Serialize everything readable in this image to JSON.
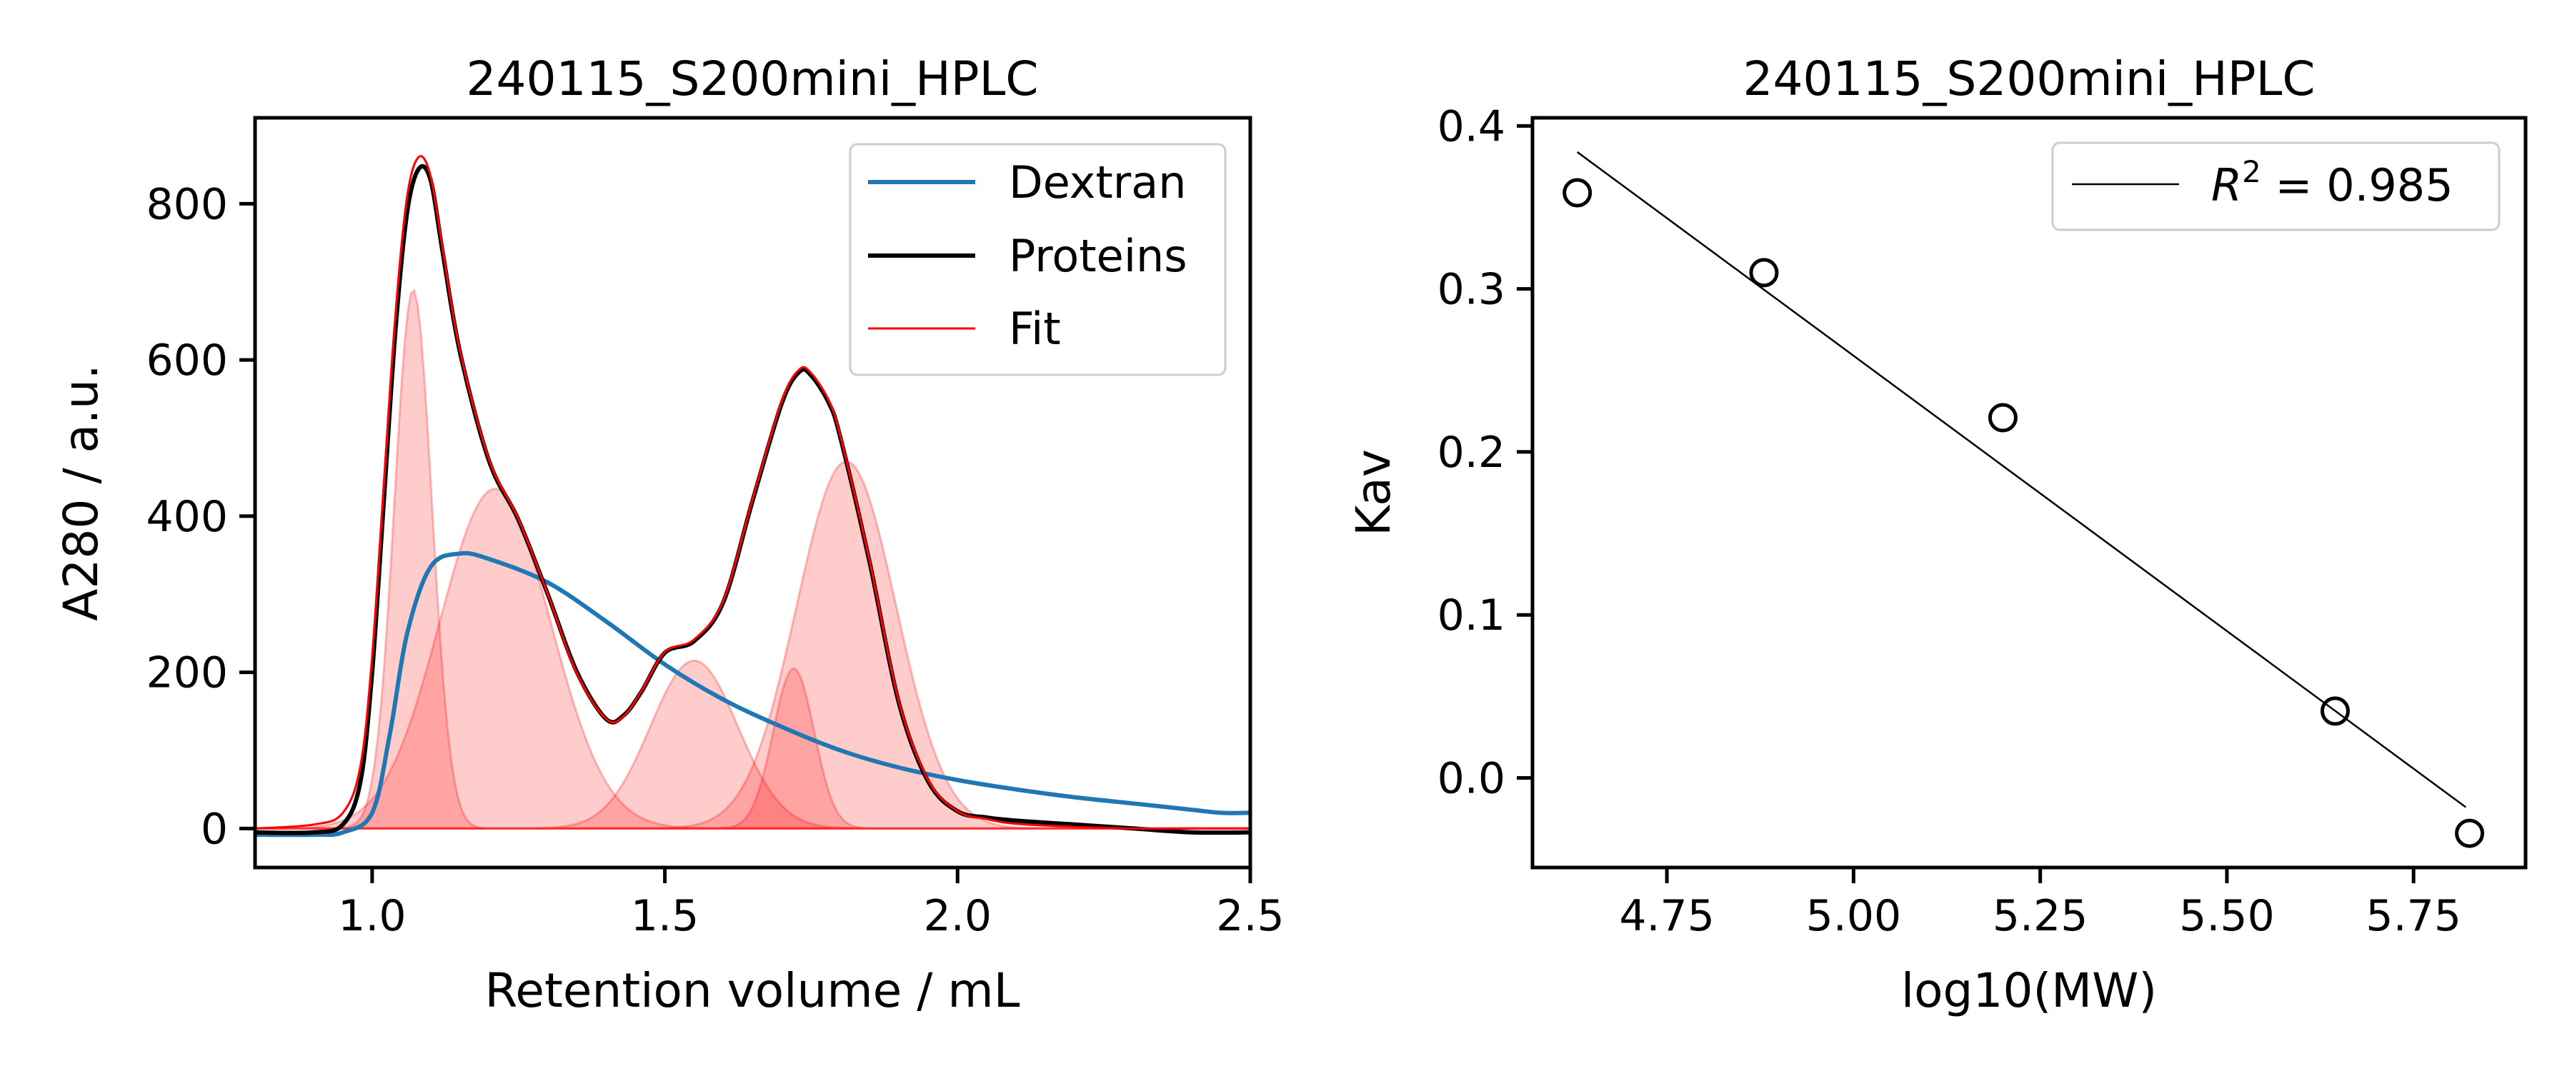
{
  "colors": {
    "dextran": "#1f77b4",
    "proteins": "#000000",
    "fit": "#ff0000",
    "fill": "#ff0000",
    "points": "#000000"
  },
  "chart_data": [
    {
      "type": "line",
      "title": "240115_S200mini_HPLC",
      "xlabel": "Retention volume / mL",
      "ylabel": "A280 / a.u.",
      "xlim": [
        0.8,
        2.5
      ],
      "ylim": [
        -50,
        910
      ],
      "xticks": [
        1.0,
        1.5,
        2.0,
        2.5
      ],
      "xtick_labels": [
        "1.0",
        "1.5",
        "2.0",
        "2.5"
      ],
      "yticks": [
        0,
        200,
        400,
        600,
        800
      ],
      "ytick_labels": [
        "0",
        "200",
        "400",
        "600",
        "800"
      ],
      "legend_position": "top-right",
      "legend": [
        "Dextran",
        "Proteins",
        "Fit"
      ],
      "components": [
        {
          "center": 1.07,
          "amplitude": 690,
          "sigma": 0.032
        },
        {
          "center": 1.21,
          "amplitude": 435,
          "sigma": 0.095
        },
        {
          "center": 1.55,
          "amplitude": 215,
          "sigma": 0.075
        },
        {
          "center": 1.72,
          "amplitude": 205,
          "sigma": 0.035
        },
        {
          "center": 1.81,
          "amplitude": 470,
          "sigma": 0.085
        }
      ],
      "series": [
        {
          "name": "Dextran",
          "x": [
            0.8,
            0.9,
            0.95,
            1.0,
            1.03,
            1.06,
            1.1,
            1.15,
            1.2,
            1.3,
            1.4,
            1.5,
            1.6,
            1.7,
            1.8,
            1.9,
            2.0,
            2.1,
            2.2,
            2.3,
            2.4,
            2.45,
            2.5
          ],
          "y": [
            -8,
            -8,
            -5,
            20,
            120,
            250,
            335,
            352,
            345,
            315,
            265,
            210,
            165,
            130,
            100,
            78,
            62,
            50,
            40,
            32,
            24,
            20,
            20
          ]
        },
        {
          "name": "Proteins",
          "x": [
            0.8,
            0.9,
            0.95,
            0.98,
            1.0,
            1.02,
            1.04,
            1.06,
            1.08,
            1.1,
            1.12,
            1.15,
            1.2,
            1.25,
            1.3,
            1.35,
            1.4,
            1.43,
            1.46,
            1.5,
            1.55,
            1.6,
            1.65,
            1.7,
            1.73,
            1.75,
            1.78,
            1.8,
            1.85,
            1.9,
            1.95,
            2.0,
            2.05,
            2.1,
            2.2,
            2.3,
            2.4,
            2.5
          ],
          "y": [
            -5,
            -5,
            5,
            60,
            200,
            420,
            640,
            790,
            845,
            830,
            740,
            610,
            470,
            395,
            300,
            200,
            140,
            145,
            175,
            225,
            240,
            290,
            420,
            545,
            585,
            580,
            545,
            500,
            340,
            160,
            60,
            22,
            14,
            10,
            5,
            0,
            -5,
            -5
          ]
        },
        {
          "name": "Fit",
          "x": [
            0.8,
            0.9,
            0.95,
            0.98,
            1.0,
            1.02,
            1.04,
            1.06,
            1.08,
            1.1,
            1.12,
            1.15,
            1.2,
            1.25,
            1.3,
            1.35,
            1.4,
            1.43,
            1.46,
            1.5,
            1.55,
            1.6,
            1.65,
            1.7,
            1.73,
            1.75,
            1.78,
            1.8,
            1.85,
            1.9,
            1.95,
            2.0,
            2.05,
            2.1,
            2.2,
            2.3,
            2.4,
            2.5
          ],
          "y": [
            0,
            5,
            20,
            80,
            220,
            440,
            660,
            810,
            860,
            835,
            745,
            612,
            472,
            396,
            300,
            198,
            140,
            144,
            176,
            226,
            242,
            292,
            422,
            548,
            588,
            583,
            548,
            502,
            342,
            162,
            62,
            22,
            12,
            6,
            2,
            0,
            0,
            0
          ]
        }
      ]
    },
    {
      "type": "scatter",
      "title": "240115_S200mini_HPLC",
      "xlabel": "log10(MW)",
      "ylabel": "Kav",
      "xlim": [
        4.57,
        5.9
      ],
      "ylim": [
        -0.055,
        0.405
      ],
      "xticks": [
        4.75,
        5.0,
        5.25,
        5.5,
        5.75
      ],
      "xtick_labels": [
        "4.75",
        "5.00",
        "5.25",
        "5.50",
        "5.75"
      ],
      "yticks": [
        0.0,
        0.1,
        0.2,
        0.3,
        0.4
      ],
      "ytick_labels": [
        "0.0",
        "0.1",
        "0.2",
        "0.3",
        "0.4"
      ],
      "legend_position": "top-right",
      "legend": [
        "$R^2$ = 0.985"
      ],
      "points": {
        "x": [
          4.63,
          4.88,
          5.2,
          5.645,
          5.825
        ],
        "y": [
          0.359,
          0.31,
          0.221,
          0.041,
          -0.034
        ]
      },
      "fit_line": {
        "x": [
          4.63,
          5.82
        ],
        "y": [
          0.384,
          -0.018
        ]
      }
    }
  ],
  "legend_r2": {
    "prefix": "R",
    "sup": "2",
    "suffix": " = 0.985"
  }
}
